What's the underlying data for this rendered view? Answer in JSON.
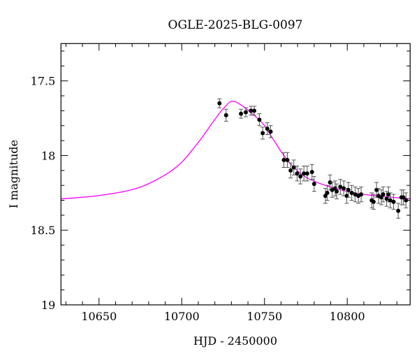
{
  "chart_data": {
    "type": "scatter",
    "title": "OGLE-2025-BLG-0097",
    "xlabel": "HJD - 2450000",
    "ylabel": "I magnitude",
    "xlim": [
      10627,
      10838
    ],
    "ylim": [
      17.25,
      19.0
    ],
    "y_inverted": true,
    "x_ticks": [
      10650,
      10700,
      10750,
      10800
    ],
    "y_ticks": [
      "17.5",
      "18",
      "18.5",
      "19"
    ],
    "grid": false,
    "colors": {
      "points": "#000000",
      "errorbars": "#555555",
      "model": "#ff00ff"
    },
    "series": [
      {
        "kind": "points_with_errorbars",
        "x": [
          10722.8,
          10726.8,
          10735.8,
          10738.7,
          10741.8,
          10743.8,
          10746.9,
          10748.9,
          10751.7,
          10753.7,
          10761.7,
          10763.8,
          10765.8,
          10767.7,
          10769.7,
          10771.7,
          10773.8,
          10775.8,
          10778.7,
          10780.0,
          10786.8,
          10787.9,
          10789.6,
          10790.9,
          10792.7,
          10793.6,
          10795.8,
          10797.9,
          10799.7,
          10800.7,
          10802.7,
          10804.8,
          10806.7,
          10808.4,
          10814.8,
          10815.9,
          10817.7,
          10818.9,
          10820.6,
          10821.7,
          10823.8,
          10824.9,
          10826.0,
          10828.0,
          10830.8,
          10832.8,
          10833.9,
          10835.5
        ],
        "y": [
          17.65,
          17.73,
          17.72,
          17.71,
          17.7,
          17.7,
          17.76,
          17.85,
          17.82,
          17.84,
          18.03,
          18.03,
          18.1,
          18.08,
          18.12,
          18.14,
          18.12,
          18.12,
          18.11,
          18.19,
          18.27,
          18.25,
          18.18,
          18.23,
          18.22,
          18.24,
          18.21,
          18.22,
          18.27,
          18.23,
          18.25,
          18.26,
          18.27,
          18.26,
          18.3,
          18.31,
          18.23,
          18.27,
          18.28,
          18.26,
          18.29,
          18.26,
          18.3,
          18.31,
          18.37,
          18.28,
          18.28,
          18.3
        ],
        "err": [
          0.03,
          0.04,
          0.03,
          0.03,
          0.03,
          0.03,
          0.04,
          0.04,
          0.04,
          0.04,
          0.05,
          0.05,
          0.05,
          0.05,
          0.05,
          0.05,
          0.05,
          0.05,
          0.05,
          0.05,
          0.05,
          0.05,
          0.05,
          0.05,
          0.05,
          0.05,
          0.05,
          0.05,
          0.05,
          0.05,
          0.05,
          0.05,
          0.05,
          0.05,
          0.05,
          0.05,
          0.05,
          0.05,
          0.05,
          0.05,
          0.05,
          0.05,
          0.05,
          0.05,
          0.05,
          0.05,
          0.05,
          0.05
        ]
      },
      {
        "kind": "model_line",
        "x": [
          10627.1,
          10648.2,
          10669.3,
          10683.4,
          10697.5,
          10708.7,
          10718.6,
          10725.6,
          10732.4,
          10747.6,
          10754.6,
          10761.7,
          10768.7,
          10775.8,
          10784.2,
          10789.8,
          10803.9,
          10818.0,
          10837.9
        ],
        "y": [
          18.29,
          18.27,
          18.23,
          18.17,
          18.07,
          17.93,
          17.78,
          17.68,
          17.64,
          17.77,
          17.88,
          18.0,
          18.09,
          18.15,
          18.19,
          18.21,
          18.25,
          18.27,
          18.29
        ]
      }
    ]
  }
}
